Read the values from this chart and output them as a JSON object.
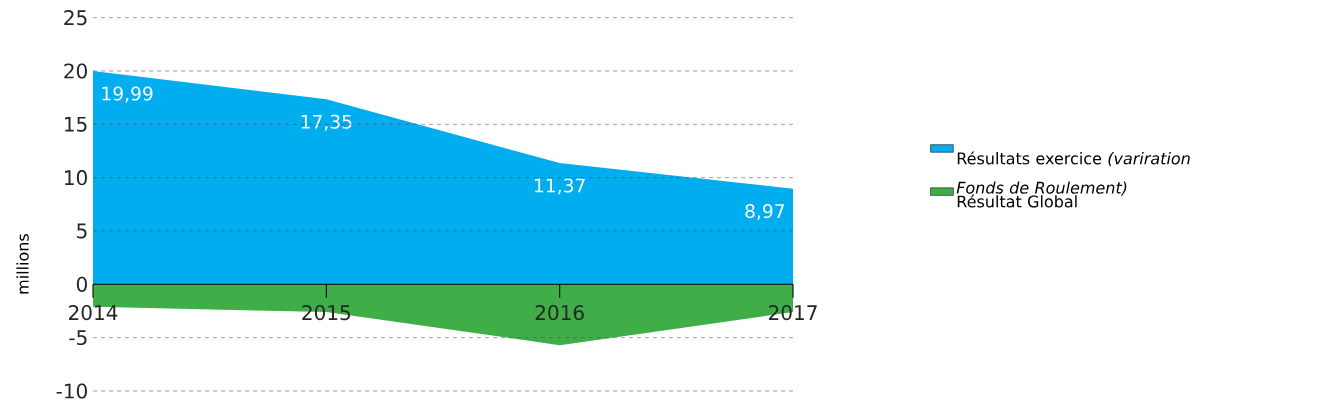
{
  "chart_data": {
    "type": "area",
    "ylabel": "millions",
    "categories": [
      "2014",
      "2015",
      "2016",
      "2017"
    ],
    "series": [
      {
        "name": "Résultats exercice *(variration Fonds de Roulement)*",
        "color": "#00aeef",
        "values": [
          19.99,
          17.35,
          11.37,
          8.97
        ],
        "value_labels": [
          "19,99",
          "17,35",
          "11,37",
          "8,97"
        ]
      },
      {
        "name": "Résultat Global",
        "color": "#3fae49",
        "values": [
          -2.1,
          -2.6,
          -5.7,
          -2.6
        ]
      }
    ],
    "ylim": [
      -10,
      25
    ],
    "yticks": [
      -10,
      -5,
      0,
      5,
      10,
      15,
      20,
      25
    ],
    "grid": "y",
    "legend": "right"
  }
}
